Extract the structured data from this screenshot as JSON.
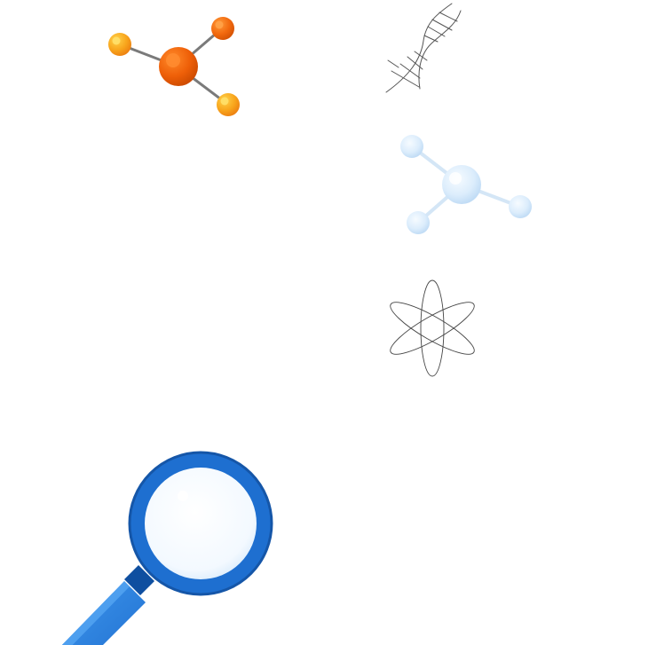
{
  "scene": {
    "background": "#ffffff",
    "illustrations": [
      {
        "name": "orange-molecule-icon",
        "colors": {
          "center": "#e65100",
          "atom_dark": "#f06a0e",
          "atom_light": "#f6a821",
          "bond": "#7a7a7a"
        }
      },
      {
        "name": "dna-helix-icon",
        "colors": {
          "stroke": "#555555"
        }
      },
      {
        "name": "blue-molecule-icon",
        "colors": {
          "atom": "#d8ecfc",
          "bond": "#d4e6f6"
        }
      },
      {
        "name": "atom-icon",
        "colors": {
          "stroke": "#444444"
        }
      },
      {
        "name": "magnifying-glass-icon",
        "colors": {
          "rim": "#1e6fd0",
          "rim_dark": "#1556a8",
          "lens": "#f2f8fe",
          "handle": "#2f86e3",
          "neck": "#0f4fa0"
        }
      }
    ]
  }
}
